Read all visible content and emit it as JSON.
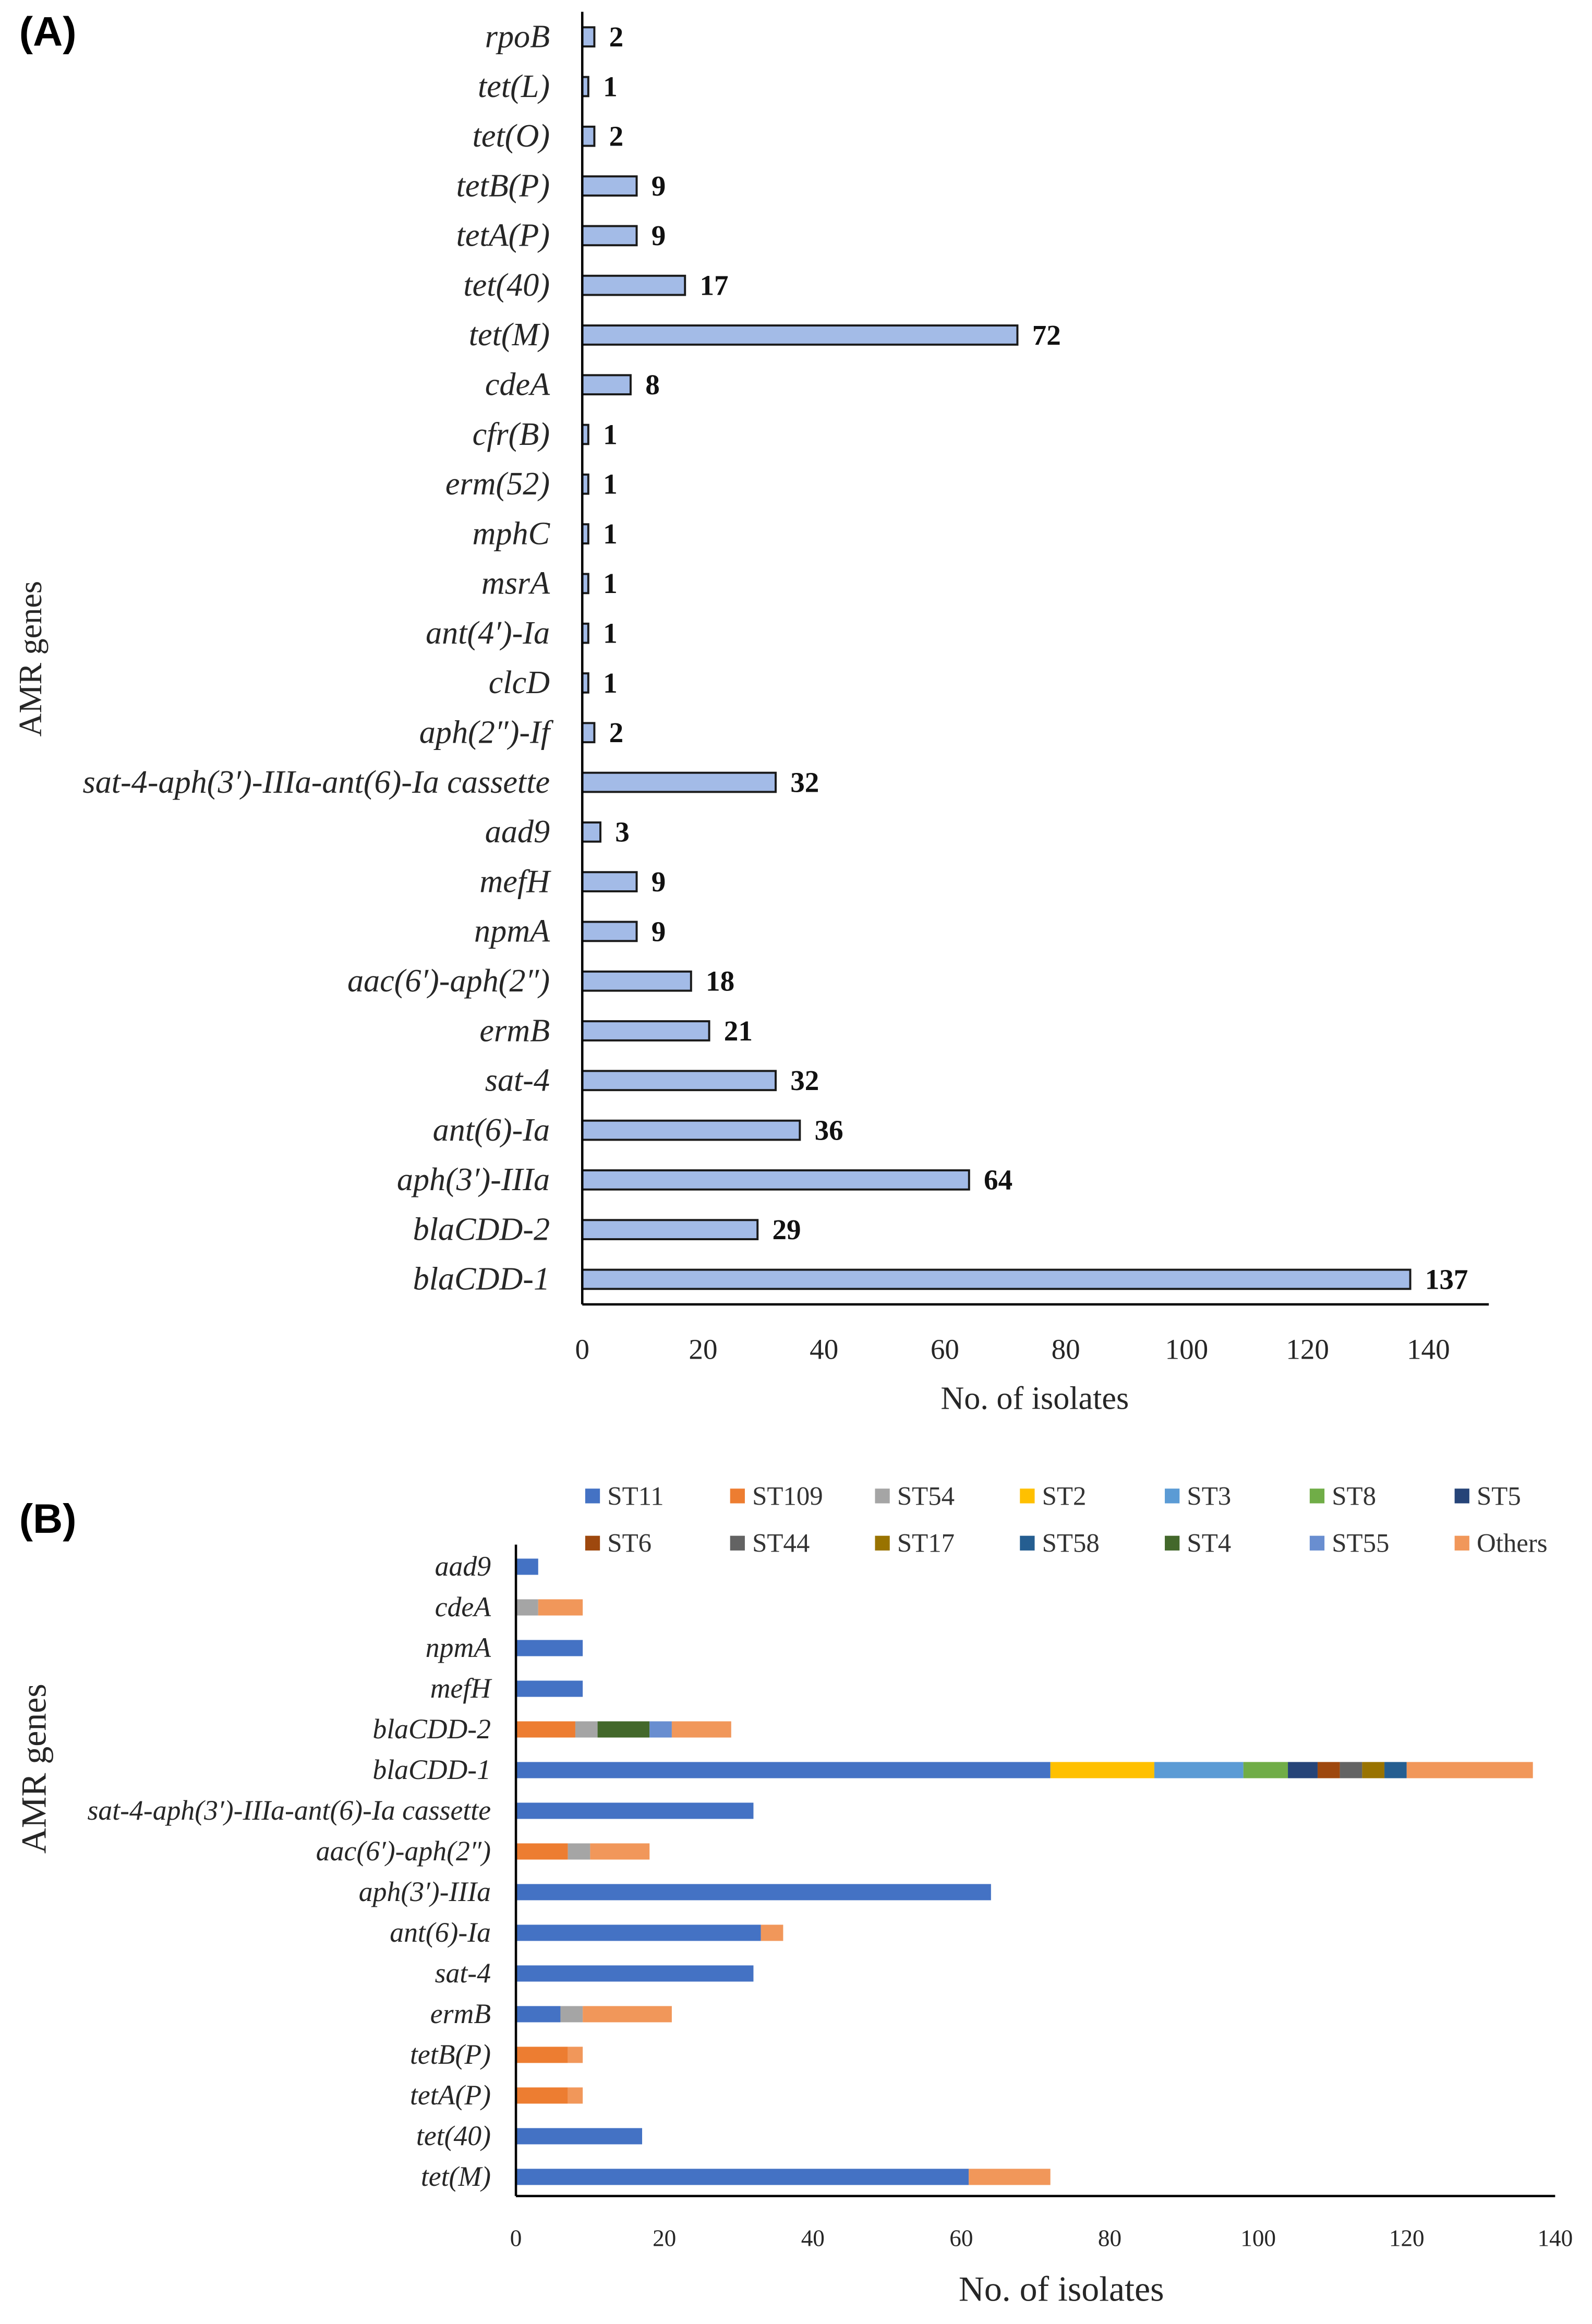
{
  "chart_data": [
    {
      "panel_label": "(A)",
      "type": "bar",
      "orientation": "horizontal",
      "xlabel": "No. of isolates",
      "ylabel": "AMR genes",
      "xlim": [
        0,
        150
      ],
      "xticks": [
        0,
        20,
        40,
        60,
        80,
        100,
        120,
        140
      ],
      "bar_color": "#A3BBE7",
      "bar_edge_color": "#1A1A1A",
      "categories": [
        "rpoB",
        "tet(L)",
        "tet(O)",
        "tetB(P)",
        "tetA(P)",
        "tet(40)",
        "tet(M)",
        "cdeA",
        "cfr(B)",
        "erm(52)",
        "mphC",
        "msrA",
        "ant(4′)-Ia",
        "clcD",
        "aph(2″)-If",
        "sat-4-aph(3′)-IIIa-ant(6)-Ia cassette",
        "aad9",
        "mefH",
        "npmA",
        "aac(6′)-aph(2″)",
        "ermB",
        "sat-4",
        "ant(6)-Ia",
        "aph(3′)-IIIa",
        "blaCDD-2",
        "blaCDD-1"
      ],
      "values": [
        2,
        1,
        2,
        9,
        9,
        17,
        72,
        8,
        1,
        1,
        1,
        1,
        1,
        1,
        2,
        32,
        3,
        9,
        9,
        18,
        21,
        32,
        36,
        64,
        29,
        137
      ]
    },
    {
      "panel_label": "(B)",
      "type": "bar",
      "orientation": "horizontal",
      "stacked": true,
      "xlabel": "No. of isolates",
      "ylabel": "AMR genes",
      "xlim": [
        0,
        140
      ],
      "xticks": [
        0,
        20,
        40,
        60,
        80,
        100,
        120,
        140
      ],
      "legend_position": "top",
      "categories": [
        "aad9",
        "cdeA",
        "npmA",
        "mefH",
        "blaCDD-2",
        "blaCDD-1",
        "sat-4-aph(3′)-IIIa-ant(6)-Ia cassette",
        "aac(6′)-aph(2″)",
        "aph(3′)-IIIa",
        "ant(6)-Ia",
        "sat-4",
        "ermB",
        "tetB(P)",
        "tetA(P)",
        "tet(40)",
        "tet(M)"
      ],
      "series": [
        {
          "name": "ST11",
          "color": "#4472C4",
          "values": [
            3,
            0,
            9,
            9,
            0,
            72,
            32,
            0,
            64,
            33,
            32,
            6,
            0,
            0,
            17,
            61
          ]
        },
        {
          "name": "ST109",
          "color": "#ED7D31",
          "values": [
            0,
            0,
            0,
            0,
            8,
            0,
            0,
            7,
            0,
            0,
            0,
            0,
            7,
            7,
            0,
            0
          ]
        },
        {
          "name": "ST54",
          "color": "#A5A5A5",
          "values": [
            0,
            3,
            0,
            0,
            3,
            0,
            0,
            3,
            0,
            0,
            0,
            3,
            0,
            0,
            0,
            0
          ]
        },
        {
          "name": "ST2",
          "color": "#FFC000",
          "values": [
            0,
            0,
            0,
            0,
            0,
            14,
            0,
            0,
            0,
            0,
            0,
            0,
            0,
            0,
            0,
            0
          ]
        },
        {
          "name": "ST3",
          "color": "#5B9BD5",
          "values": [
            0,
            0,
            0,
            0,
            0,
            12,
            0,
            0,
            0,
            0,
            0,
            0,
            0,
            0,
            0,
            0
          ]
        },
        {
          "name": "ST8",
          "color": "#70AD47",
          "values": [
            0,
            0,
            0,
            0,
            0,
            6,
            0,
            0,
            0,
            0,
            0,
            0,
            0,
            0,
            0,
            0
          ]
        },
        {
          "name": "ST5",
          "color": "#264478",
          "values": [
            0,
            0,
            0,
            0,
            0,
            4,
            0,
            0,
            0,
            0,
            0,
            0,
            0,
            0,
            0,
            0
          ]
        },
        {
          "name": "ST6",
          "color": "#9E480E",
          "values": [
            0,
            0,
            0,
            0,
            0,
            3,
            0,
            0,
            0,
            0,
            0,
            0,
            0,
            0,
            0,
            0
          ]
        },
        {
          "name": "ST44",
          "color": "#636363",
          "values": [
            0,
            0,
            0,
            0,
            0,
            3,
            0,
            0,
            0,
            0,
            0,
            0,
            0,
            0,
            0,
            0
          ]
        },
        {
          "name": "ST17",
          "color": "#997300",
          "values": [
            0,
            0,
            0,
            0,
            0,
            3,
            0,
            0,
            0,
            0,
            0,
            0,
            0,
            0,
            0,
            0
          ]
        },
        {
          "name": "ST58",
          "color": "#255E91",
          "values": [
            0,
            0,
            0,
            0,
            0,
            3,
            0,
            0,
            0,
            0,
            0,
            0,
            0,
            0,
            0,
            0
          ]
        },
        {
          "name": "ST4",
          "color": "#43682B",
          "values": [
            0,
            0,
            0,
            0,
            7,
            0,
            0,
            0,
            0,
            0,
            0,
            0,
            0,
            0,
            0,
            0
          ]
        },
        {
          "name": "ST55",
          "color": "#698ED0",
          "values": [
            0,
            0,
            0,
            0,
            3,
            0,
            0,
            0,
            0,
            0,
            0,
            0,
            0,
            0,
            0,
            0
          ]
        },
        {
          "name": "Others",
          "color": "#F1975A",
          "values": [
            0,
            6,
            0,
            0,
            8,
            17,
            0,
            8,
            0,
            3,
            0,
            12,
            2,
            2,
            0,
            11
          ]
        }
      ]
    }
  ]
}
